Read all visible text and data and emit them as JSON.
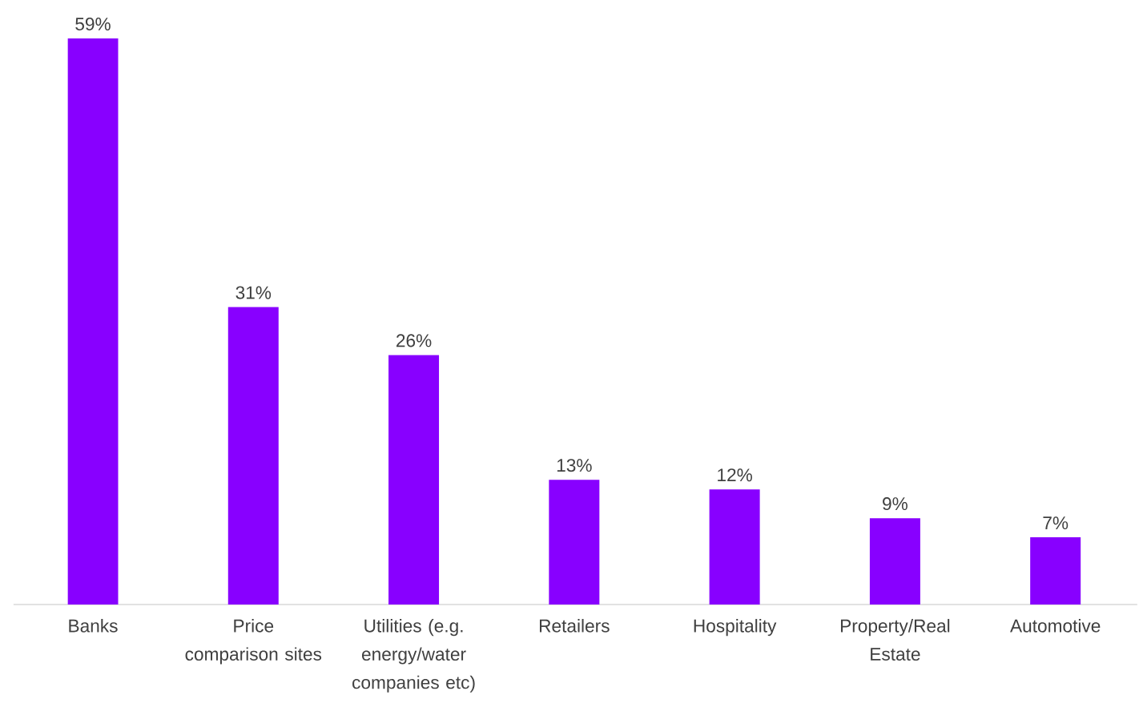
{
  "chart_data": {
    "type": "bar",
    "categories": [
      "Banks",
      "Price comparison sites",
      "Utilities (e.g. energy/water companies etc)",
      "Retailers",
      "Hospitality",
      "Property/Real Estate",
      "Automotive"
    ],
    "values": [
      59,
      31,
      26,
      13,
      12,
      9,
      7
    ],
    "value_labels": [
      "59%",
      "31%",
      "26%",
      "13%",
      "12%",
      "9%",
      "7%"
    ],
    "color": "#8800ff"
  }
}
